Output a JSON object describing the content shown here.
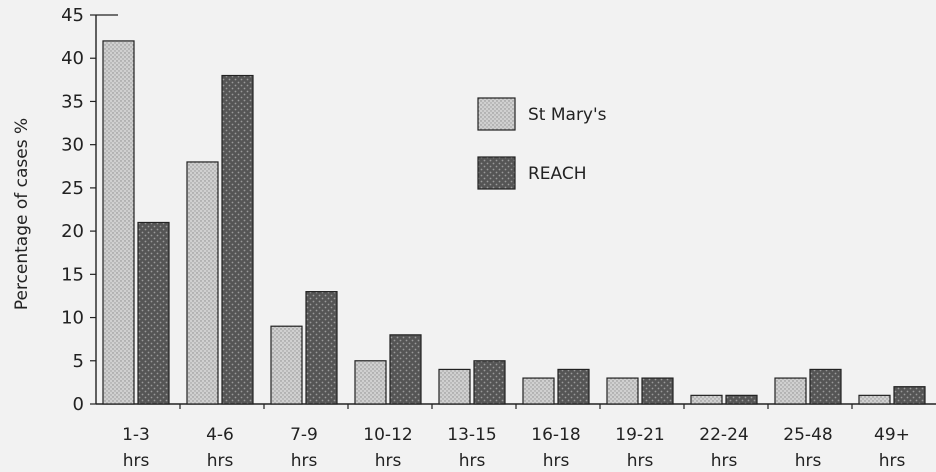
{
  "chart_data": {
    "type": "bar",
    "ylabel": "Percentage of cases %",
    "xlabel": "",
    "ylim": [
      0,
      45
    ],
    "yticks": [
      0,
      5,
      10,
      15,
      20,
      25,
      30,
      35,
      40,
      45
    ],
    "grid": false,
    "legend_position": "upper-center",
    "categories": [
      [
        "1-3",
        "hrs"
      ],
      [
        "4-6",
        "hrs"
      ],
      [
        "7-9",
        "hrs"
      ],
      [
        "10-12",
        "hrs"
      ],
      [
        "13-15",
        "hrs"
      ],
      [
        "16-18",
        "hrs"
      ],
      [
        "19-21",
        "hrs"
      ],
      [
        "22-24",
        "hrs"
      ],
      [
        "25-48",
        "hrs"
      ],
      [
        "49+",
        "hrs"
      ]
    ],
    "series": [
      {
        "name": "St Mary's",
        "color": "#c8c8c8",
        "values": [
          42,
          28,
          9,
          5,
          4,
          3,
          3,
          1,
          3,
          1
        ]
      },
      {
        "name": "REACH",
        "color": "#5a5a5a",
        "values": [
          21,
          38,
          13,
          8,
          5,
          4,
          3,
          1,
          4,
          2
        ]
      }
    ]
  }
}
